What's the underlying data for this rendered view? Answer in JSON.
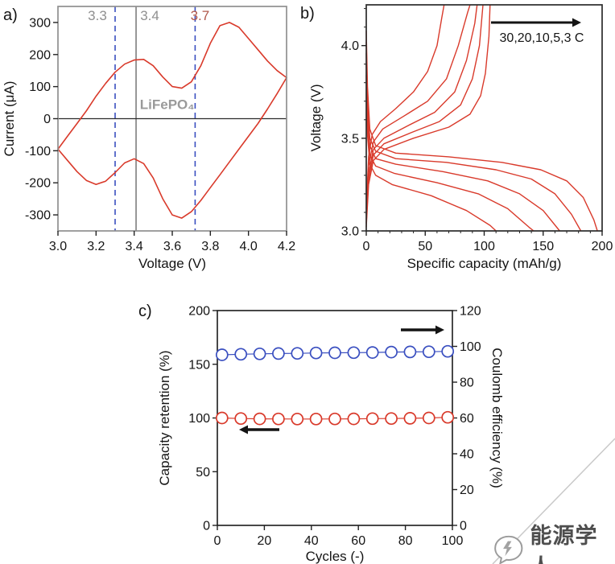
{
  "figure": {
    "background": "#ffffff",
    "panel_labels": {
      "a": "a)",
      "b": "b)",
      "c": "c)"
    }
  },
  "watermark": {
    "text": "能源学人",
    "icon": "speech-bubble-icon"
  },
  "chart_data": [
    {
      "id": "cv-curve",
      "panel": "a",
      "type": "line",
      "xlabel": "Voltage (V)",
      "ylabel": "Current (μA)",
      "xlim": [
        3.0,
        4.2
      ],
      "ylim": [
        -350,
        350
      ],
      "xticks": [
        "3.0",
        "3.2",
        "3.4",
        "3.6",
        "3.8",
        "4.0",
        "4.2"
      ],
      "yticks": [
        "-300",
        "-200",
        "-100",
        "0",
        "100",
        "200",
        "300"
      ],
      "grid": false,
      "frame_color": "#8f8f8f",
      "zero_line_color": "#2b2b2b",
      "vlines": [
        {
          "x": 3.3,
          "style": "dashed",
          "color": "#3a4fc0",
          "label": "3.3",
          "label_color": "#8f8f8f",
          "label_dx": -22
        },
        {
          "x": 3.41,
          "style": "solid",
          "color": "#7d7d7d",
          "label": "3.4",
          "label_color": "#8f8f8f",
          "label_dx": 17
        },
        {
          "x": 3.72,
          "style": "dashed",
          "color": "#3a4fc0",
          "label": "3.7",
          "label_color": "#b0574a",
          "label_dx": 6
        }
      ],
      "annotation": {
        "text": "LiFePO₄",
        "x": 3.43,
        "y": 30,
        "color": "#9a9a9a"
      },
      "series": [
        {
          "name": "cv-curve-anodic",
          "color": "#d93a2b",
          "width": 1.6,
          "points": [
            [
              3.0,
              -95
            ],
            [
              3.05,
              -55
            ],
            [
              3.1,
              -15
            ],
            [
              3.15,
              25
            ],
            [
              3.2,
              70
            ],
            [
              3.25,
              110
            ],
            [
              3.3,
              145
            ],
            [
              3.35,
              170
            ],
            [
              3.4,
              183
            ],
            [
              3.45,
              185
            ],
            [
              3.5,
              165
            ],
            [
              3.55,
              130
            ],
            [
              3.6,
              100
            ],
            [
              3.65,
              95
            ],
            [
              3.7,
              115
            ],
            [
              3.75,
              165
            ],
            [
              3.8,
              235
            ],
            [
              3.85,
              290
            ],
            [
              3.9,
              300
            ],
            [
              3.95,
              285
            ],
            [
              4.0,
              250
            ],
            [
              4.05,
              215
            ],
            [
              4.1,
              180
            ],
            [
              4.15,
              150
            ],
            [
              4.2,
              128
            ]
          ]
        },
        {
          "name": "cv-curve-cathodic",
          "color": "#d93a2b",
          "width": 1.6,
          "points": [
            [
              3.0,
              -95
            ],
            [
              3.05,
              -130
            ],
            [
              3.1,
              -165
            ],
            [
              3.15,
              -193
            ],
            [
              3.2,
              -205
            ],
            [
              3.25,
              -195
            ],
            [
              3.3,
              -168
            ],
            [
              3.35,
              -138
            ],
            [
              3.4,
              -125
            ],
            [
              3.45,
              -140
            ],
            [
              3.5,
              -185
            ],
            [
              3.55,
              -250
            ],
            [
              3.6,
              -300
            ],
            [
              3.65,
              -310
            ],
            [
              3.7,
              -290
            ],
            [
              3.75,
              -255
            ],
            [
              3.8,
              -215
            ],
            [
              3.85,
              -175
            ],
            [
              3.9,
              -135
            ],
            [
              3.95,
              -95
            ],
            [
              4.0,
              -55
            ],
            [
              4.05,
              -15
            ],
            [
              4.1,
              30
            ],
            [
              4.15,
              78
            ],
            [
              4.2,
              128
            ]
          ]
        }
      ]
    },
    {
      "id": "rate-capability",
      "panel": "b",
      "type": "line",
      "xlabel": "Specific capacity (mAh/g)",
      "ylabel": "Voltage (V)",
      "xlim": [
        0,
        200
      ],
      "ylim": [
        3.0,
        4.22
      ],
      "xticks": [
        "0",
        "50",
        "100",
        "150",
        "200"
      ],
      "yticks": [
        "3.0",
        "3.5",
        "4.0"
      ],
      "minor_xticks": [
        10,
        20,
        30,
        40,
        60,
        70,
        80,
        90,
        110,
        120,
        130,
        140,
        160,
        170,
        180,
        190
      ],
      "minor_yticks": [
        3.1,
        3.2,
        3.3,
        3.4,
        3.6,
        3.7,
        3.8,
        3.9,
        4.1,
        4.2
      ],
      "frame_color": "#2b2b2b",
      "line_color": "#d93a2b",
      "annotation": {
        "text": "30,20,10,5,3 C",
        "color": "#141414",
        "arrow_dir": "right"
      },
      "series": [
        {
          "name": "charge-3C",
          "points": [
            [
              0,
              3.02
            ],
            [
              2,
              3.25
            ],
            [
              6,
              3.38
            ],
            [
              15,
              3.44
            ],
            [
              40,
              3.5
            ],
            [
              70,
              3.56
            ],
            [
              88,
              3.63
            ],
            [
              97,
              3.73
            ],
            [
              101,
              3.85
            ],
            [
              104,
              4.05
            ],
            [
              105,
              4.22
            ]
          ]
        },
        {
          "name": "charge-5C",
          "points": [
            [
              0,
              3.04
            ],
            [
              2,
              3.28
            ],
            [
              6,
              3.41
            ],
            [
              15,
              3.47
            ],
            [
              38,
              3.53
            ],
            [
              62,
              3.59
            ],
            [
              80,
              3.68
            ],
            [
              90,
              3.82
            ],
            [
              96,
              4.0
            ],
            [
              99,
              4.22
            ]
          ]
        },
        {
          "name": "charge-10C",
          "points": [
            [
              0,
              3.06
            ],
            [
              2,
              3.31
            ],
            [
              6,
              3.44
            ],
            [
              15,
              3.5
            ],
            [
              36,
              3.57
            ],
            [
              58,
              3.64
            ],
            [
              75,
              3.75
            ],
            [
              85,
              3.92
            ],
            [
              92,
              4.12
            ],
            [
              94,
              4.22
            ]
          ]
        },
        {
          "name": "charge-20C",
          "points": [
            [
              0,
              3.09
            ],
            [
              2,
              3.35
            ],
            [
              6,
              3.48
            ],
            [
              14,
              3.55
            ],
            [
              32,
              3.62
            ],
            [
              52,
              3.7
            ],
            [
              68,
              3.82
            ],
            [
              78,
              4.0
            ],
            [
              86,
              4.18
            ],
            [
              88,
              4.22
            ]
          ]
        },
        {
          "name": "charge-30C",
          "points": [
            [
              0,
              3.12
            ],
            [
              2,
              3.4
            ],
            [
              5,
              3.52
            ],
            [
              12,
              3.59
            ],
            [
              25,
              3.66
            ],
            [
              40,
              3.75
            ],
            [
              52,
              3.86
            ],
            [
              60,
              4.0
            ],
            [
              64,
              4.15
            ],
            [
              66,
              4.22
            ]
          ]
        },
        {
          "name": "discharge-3C",
          "points": [
            [
              0,
              4.08
            ],
            [
              1,
              3.78
            ],
            [
              3,
              3.55
            ],
            [
              8,
              3.46
            ],
            [
              25,
              3.42
            ],
            [
              70,
              3.4
            ],
            [
              115,
              3.37
            ],
            [
              148,
              3.33
            ],
            [
              170,
              3.27
            ],
            [
              184,
              3.18
            ],
            [
              193,
              3.06
            ],
            [
              196,
              3.0
            ]
          ]
        },
        {
          "name": "discharge-5C",
          "points": [
            [
              0,
              4.02
            ],
            [
              1,
              3.72
            ],
            [
              3,
              3.5
            ],
            [
              8,
              3.43
            ],
            [
              25,
              3.39
            ],
            [
              68,
              3.37
            ],
            [
              110,
              3.33
            ],
            [
              140,
              3.28
            ],
            [
              160,
              3.2
            ],
            [
              174,
              3.09
            ],
            [
              182,
              3.0
            ]
          ]
        },
        {
          "name": "discharge-10C",
          "points": [
            [
              0,
              3.96
            ],
            [
              1,
              3.65
            ],
            [
              3,
              3.46
            ],
            [
              8,
              3.39
            ],
            [
              25,
              3.36
            ],
            [
              65,
              3.32
            ],
            [
              103,
              3.27
            ],
            [
              130,
              3.2
            ],
            [
              150,
              3.11
            ],
            [
              164,
              3.0
            ]
          ]
        },
        {
          "name": "discharge-20C",
          "points": [
            [
              0,
              3.9
            ],
            [
              1,
              3.59
            ],
            [
              3,
              3.41
            ],
            [
              8,
              3.35
            ],
            [
              24,
              3.31
            ],
            [
              60,
              3.26
            ],
            [
              95,
              3.2
            ],
            [
              120,
              3.12
            ],
            [
              138,
              3.02
            ],
            [
              142,
              3.0
            ]
          ]
        },
        {
          "name": "discharge-30C",
          "points": [
            [
              0,
              3.84
            ],
            [
              1,
              3.52
            ],
            [
              3,
              3.36
            ],
            [
              8,
              3.3
            ],
            [
              22,
              3.25
            ],
            [
              55,
              3.19
            ],
            [
              85,
              3.11
            ],
            [
              105,
              3.03
            ],
            [
              110,
              3.0
            ]
          ]
        }
      ]
    },
    {
      "id": "cycling-performance",
      "panel": "c",
      "type": "scatter",
      "xlabel": "Cycles (-)",
      "ylabel_left": "Capacity retention (%)",
      "ylabel_right": "Coulomb efficiency (%)",
      "xlim": [
        0,
        100
      ],
      "ylim_left": [
        0,
        200
      ],
      "ylim_right": [
        0,
        120
      ],
      "xticks": [
        "0",
        "20",
        "40",
        "60",
        "80",
        "100"
      ],
      "yticks_left": [
        "0",
        "50",
        "100",
        "150",
        "200"
      ],
      "yticks_right": [
        "0",
        "20",
        "40",
        "60",
        "80",
        "100",
        "120"
      ],
      "frame_color": "#1a1a1a",
      "series": [
        {
          "name": "coulomb-efficiency",
          "axis": "right",
          "color": "#3a4fc0",
          "marker": "circle",
          "x": [
            2,
            10,
            18,
            26,
            34,
            42,
            50,
            58,
            66,
            74,
            82,
            90,
            98
          ],
          "y": [
            95.3,
            95.6,
            95.8,
            96.0,
            96.1,
            96.3,
            96.4,
            96.5,
            96.6,
            96.8,
            96.9,
            97.0,
            97.2
          ]
        },
        {
          "name": "capacity-retention",
          "axis": "left",
          "color": "#d93a2b",
          "marker": "circle",
          "x": [
            2,
            10,
            18,
            26,
            34,
            42,
            50,
            58,
            66,
            74,
            82,
            90,
            98
          ],
          "y": [
            100,
            99.5,
            99.2,
            99.1,
            99.0,
            99.0,
            99.1,
            99.2,
            99.4,
            99.5,
            99.7,
            100.0,
            100.6
          ]
        }
      ],
      "arrows": [
        {
          "name": "right-axis-arrow",
          "dir": "right",
          "refers_to": "coulomb-efficiency"
        },
        {
          "name": "left-axis-arrow",
          "dir": "left",
          "refers_to": "capacity-retention"
        }
      ]
    }
  ]
}
